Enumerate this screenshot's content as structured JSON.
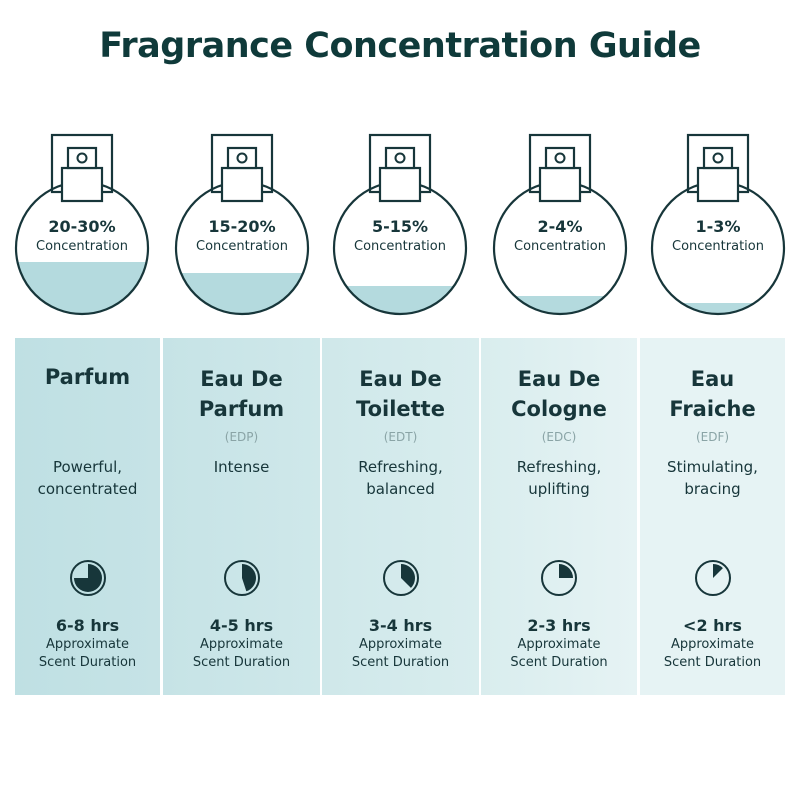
{
  "title": "Fragrance Concentration Guide",
  "duration_label": "Approximate Scent Duration",
  "duration_line1": "Approximate",
  "duration_line2": "Scent Duration",
  "concentration_label": "Concentration",
  "colors": {
    "ink": "#17363a",
    "liquid": "#b4dade",
    "panel": "#c3e2e5"
  },
  "types": [
    {
      "name1": "Parfum",
      "name2": "",
      "abbr": "",
      "concentration": "20-30%",
      "fill_level": 0.3,
      "desc1": "Powerful,",
      "desc2": "concentrated",
      "hours": "6-8 hrs",
      "clock_fraction": 0.75
    },
    {
      "name1": "Eau De",
      "name2": "Parfum",
      "abbr": "(EDP)",
      "concentration": "15-20%",
      "fill_level": 0.2,
      "desc1": "Intense",
      "desc2": "",
      "hours": "4-5 hrs",
      "clock_fraction": 0.45
    },
    {
      "name1": "Eau De",
      "name2": "Toilette",
      "abbr": "(EDT)",
      "concentration": "5-15%",
      "fill_level": 0.15,
      "desc1": "Refreshing,",
      "desc2": "balanced",
      "hours": "3-4 hrs",
      "clock_fraction": 0.375
    },
    {
      "name1": "Eau De",
      "name2": "Cologne",
      "abbr": "(EDC)",
      "concentration": "2-4%",
      "fill_level": 0.04,
      "desc1": "Refreshing,",
      "desc2": "uplifting",
      "hours": "2-3 hrs",
      "clock_fraction": 0.25
    },
    {
      "name1": "Eau",
      "name2": "Fraiche",
      "abbr": "(EDF)",
      "concentration": "1-3%",
      "fill_level": 0.03,
      "desc1": "Stimulating,",
      "desc2": "bracing",
      "hours": "<2 hrs",
      "clock_fraction": 0.125
    }
  ]
}
